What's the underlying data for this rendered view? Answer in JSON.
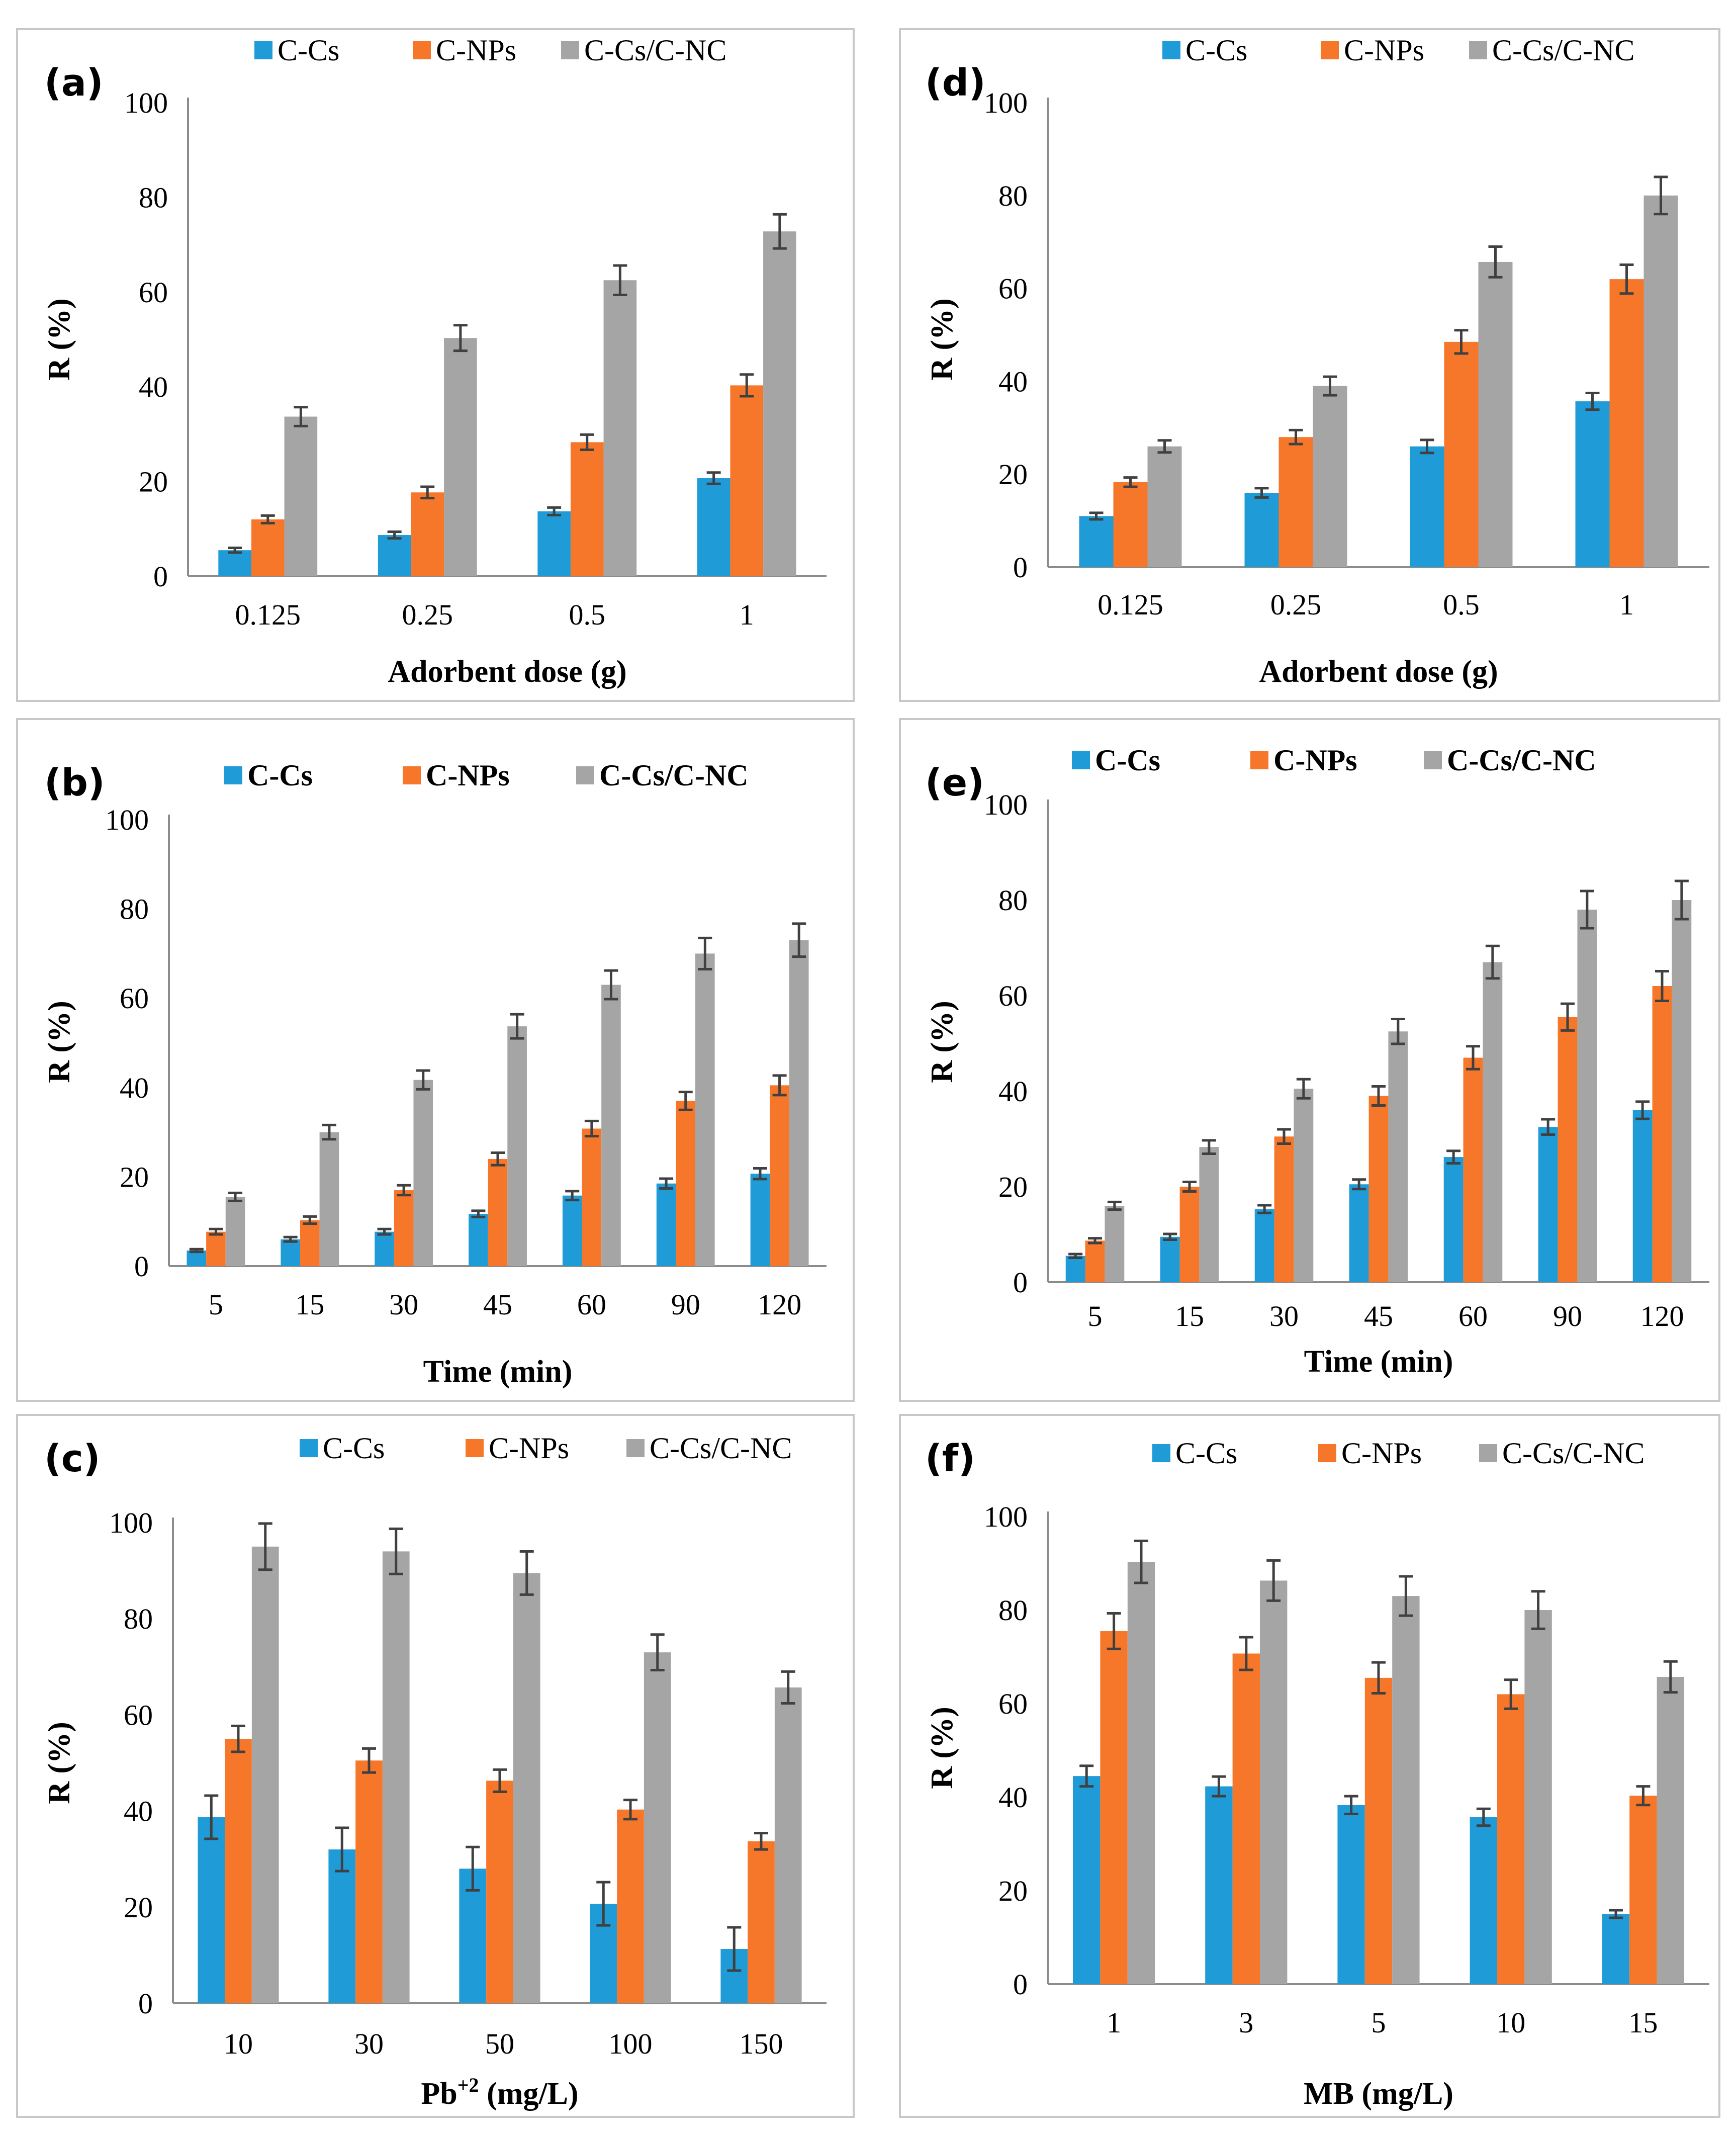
{
  "colors": {
    "C-Cs": "#1f9bd7",
    "C-NPs": "#f7772a",
    "C-Cs/C-NC": "#a5a5a5",
    "error": "#404040",
    "axis": "#8c8c8c"
  },
  "chart_data": [
    {
      "id": "a",
      "label": "(a)",
      "type": "bar",
      "categories": [
        "0.125",
        "0.25",
        "0.5",
        "1"
      ],
      "xlabel": "Adorbent dose (g)",
      "ylabel": "R (%)",
      "ylim": [
        0,
        100
      ],
      "yticks": [
        "0",
        "20",
        "40",
        "60",
        "80",
        "100"
      ],
      "legend_bold": false,
      "series": [
        {
          "name": "C-Cs",
          "values": [
            5.5,
            8.7,
            13.7,
            20.7
          ],
          "errors": [
            0.5,
            0.7,
            0.8,
            1.2
          ]
        },
        {
          "name": "C-NPs",
          "values": [
            12.0,
            17.7,
            28.3,
            40.3
          ],
          "errors": [
            0.8,
            1.2,
            1.6,
            2.3
          ]
        },
        {
          "name": "C-Cs/C-NC",
          "values": [
            33.7,
            50.3,
            62.5,
            72.8
          ],
          "errors": [
            2.0,
            2.7,
            3.1,
            3.6
          ]
        }
      ]
    },
    {
      "id": "d",
      "label": "(d)",
      "type": "bar",
      "categories": [
        "0.125",
        "0.25",
        "0.5",
        "1"
      ],
      "xlabel": "Adorbent dose (g)",
      "ylabel": "R (%)",
      "ylim": [
        0,
        100
      ],
      "yticks": [
        "0",
        "20",
        "40",
        "60",
        "80",
        "100"
      ],
      "legend_bold": false,
      "series": [
        {
          "name": "C-Cs",
          "values": [
            11.0,
            16.0,
            26.0,
            35.7
          ],
          "errors": [
            0.7,
            1.0,
            1.4,
            1.8
          ]
        },
        {
          "name": "C-NPs",
          "values": [
            18.3,
            28.0,
            48.5,
            62.0
          ],
          "errors": [
            1.0,
            1.5,
            2.5,
            3.1
          ]
        },
        {
          "name": "C-Cs/C-NC",
          "values": [
            26.0,
            39.0,
            65.7,
            80.0
          ],
          "errors": [
            1.3,
            2.0,
            3.3,
            4.0
          ]
        }
      ]
    },
    {
      "id": "b",
      "label": "(b)",
      "type": "bar",
      "categories": [
        "5",
        "15",
        "30",
        "45",
        "60",
        "90",
        "120"
      ],
      "xlabel": "Time (min)",
      "ylabel": "R (%)",
      "ylim": [
        0,
        100
      ],
      "yticks": [
        "0",
        "20",
        "40",
        "60",
        "80",
        "100"
      ],
      "legend_bold": true,
      "series": [
        {
          "name": "C-Cs",
          "values": [
            3.5,
            6.0,
            7.7,
            11.7,
            15.8,
            18.5,
            20.7
          ],
          "errors": [
            0.3,
            0.5,
            0.6,
            0.7,
            1.0,
            1.1,
            1.2
          ]
        },
        {
          "name": "C-NPs",
          "values": [
            7.7,
            10.3,
            17.0,
            24.0,
            30.8,
            37.0,
            40.5
          ],
          "errors": [
            0.6,
            0.8,
            1.1,
            1.4,
            1.7,
            2.0,
            2.2
          ]
        },
        {
          "name": "C-Cs/C-NC",
          "values": [
            15.5,
            30.0,
            41.7,
            53.7,
            63.0,
            70.0,
            73.0
          ],
          "errors": [
            0.9,
            1.6,
            2.1,
            2.7,
            3.2,
            3.5,
            3.7
          ]
        }
      ]
    },
    {
      "id": "e",
      "label": "(e)",
      "type": "bar",
      "categories": [
        "5",
        "15",
        "30",
        "45",
        "60",
        "90",
        "120"
      ],
      "xlabel": "Time (min)",
      "ylabel": "R (%)",
      "ylim": [
        0,
        100
      ],
      "yticks": [
        "0",
        "20",
        "40",
        "60",
        "80",
        "100"
      ],
      "legend_bold": true,
      "series": [
        {
          "name": "C-Cs",
          "values": [
            5.5,
            9.5,
            15.3,
            20.5,
            26.2,
            32.5,
            36.0
          ],
          "errors": [
            0.4,
            0.6,
            0.8,
            1.0,
            1.3,
            1.6,
            1.8
          ]
        },
        {
          "name": "C-NPs",
          "values": [
            8.7,
            20.0,
            30.5,
            39.0,
            47.0,
            55.5,
            62.0
          ],
          "errors": [
            0.5,
            1.0,
            1.5,
            2.0,
            2.4,
            2.8,
            3.1
          ]
        },
        {
          "name": "C-Cs/C-NC",
          "values": [
            16.0,
            28.3,
            40.5,
            52.5,
            67.0,
            78.0,
            80.0
          ],
          "errors": [
            0.8,
            1.4,
            2.0,
            2.6,
            3.4,
            3.9,
            4.0
          ]
        }
      ]
    },
    {
      "id": "c",
      "label": "(c)",
      "type": "bar",
      "categories": [
        "10",
        "30",
        "50",
        "100",
        "150"
      ],
      "xlabel_main": "Pb",
      "xlabel_sup": "+2",
      "xlabel_rest": " (mg/L)",
      "ylabel": "R (%)",
      "ylim": [
        0,
        100
      ],
      "yticks": [
        "0",
        "20",
        "40",
        "60",
        "80",
        "100"
      ],
      "legend_bold": false,
      "series": [
        {
          "name": "C-Cs",
          "values": [
            38.7,
            32.0,
            28.0,
            20.7,
            11.3
          ],
          "errors": [
            4.5,
            4.5,
            4.5,
            4.5,
            4.5
          ]
        },
        {
          "name": "C-NPs",
          "values": [
            55.0,
            50.5,
            46.3,
            40.3,
            33.7
          ],
          "errors": [
            2.7,
            2.5,
            2.3,
            2.0,
            1.7
          ]
        },
        {
          "name": "C-Cs/C-NC",
          "values": [
            95.0,
            94.0,
            89.5,
            73.0,
            65.7
          ],
          "errors": [
            4.8,
            4.7,
            4.5,
            3.7,
            3.3
          ]
        }
      ]
    },
    {
      "id": "f",
      "label": "(f)",
      "type": "bar",
      "categories": [
        "1",
        "3",
        "5",
        "10",
        "15"
      ],
      "xlabel": "MB (mg/L)",
      "ylabel": "R (%)",
      "ylim": [
        0,
        100
      ],
      "yticks": [
        "0",
        "20",
        "40",
        "60",
        "80",
        "100"
      ],
      "legend_bold": false,
      "series": [
        {
          "name": "C-Cs",
          "values": [
            44.5,
            42.3,
            38.3,
            35.7,
            15.0
          ],
          "errors": [
            2.2,
            2.1,
            1.9,
            1.8,
            0.8
          ]
        },
        {
          "name": "C-NPs",
          "values": [
            75.5,
            70.7,
            65.5,
            62.0,
            40.3
          ],
          "errors": [
            3.8,
            3.5,
            3.3,
            3.1,
            2.0
          ]
        },
        {
          "name": "C-Cs/C-NC",
          "values": [
            90.3,
            86.3,
            83.0,
            80.0,
            65.7
          ],
          "errors": [
            4.5,
            4.3,
            4.2,
            4.0,
            3.3
          ]
        }
      ]
    }
  ]
}
